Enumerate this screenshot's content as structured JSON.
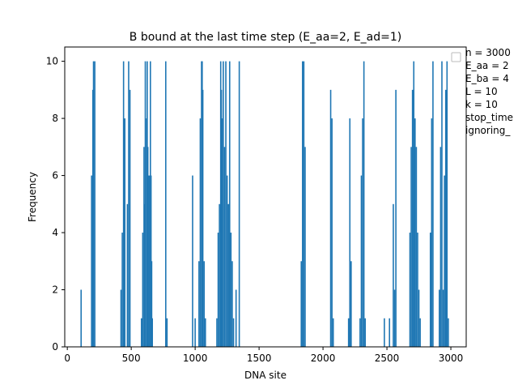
{
  "chart_data": {
    "type": "bar",
    "title": "B bound at the last time step (E_aa=2, E_ad=1)",
    "xlabel": "DNA site",
    "ylabel": "Frequency",
    "xlim": [
      -20,
      3120
    ],
    "ylim": [
      0,
      10.5
    ],
    "xticks": [
      0,
      500,
      1000,
      1500,
      2000,
      2500,
      3000
    ],
    "yticks": [
      0,
      2,
      4,
      6,
      8,
      10
    ],
    "bar_color": "#1f77b4",
    "legend": {
      "position": "upper-right",
      "entries": [
        "n = 3000",
        "E_aa = 2",
        "E_ba = 4",
        "L = 10",
        "k = 10",
        "stop_time",
        "ignoring_"
      ]
    },
    "series": [
      {
        "name": "B bound",
        "points": [
          [
            108,
            2
          ],
          [
            190,
            6
          ],
          [
            200,
            9
          ],
          [
            205,
            10
          ],
          [
            215,
            10
          ],
          [
            420,
            2
          ],
          [
            430,
            4
          ],
          [
            440,
            10
          ],
          [
            450,
            8
          ],
          [
            470,
            5
          ],
          [
            480,
            10
          ],
          [
            490,
            9
          ],
          [
            580,
            1
          ],
          [
            590,
            4
          ],
          [
            600,
            7
          ],
          [
            605,
            5
          ],
          [
            610,
            10
          ],
          [
            620,
            8
          ],
          [
            625,
            10
          ],
          [
            630,
            7
          ],
          [
            640,
            6
          ],
          [
            650,
            10
          ],
          [
            655,
            6
          ],
          [
            660,
            3
          ],
          [
            665,
            1
          ],
          [
            770,
            10
          ],
          [
            780,
            1
          ],
          [
            980,
            6
          ],
          [
            1000,
            1
          ],
          [
            1030,
            3
          ],
          [
            1040,
            8
          ],
          [
            1050,
            10
          ],
          [
            1055,
            10
          ],
          [
            1060,
            9
          ],
          [
            1070,
            3
          ],
          [
            1080,
            1
          ],
          [
            1170,
            1
          ],
          [
            1180,
            4
          ],
          [
            1190,
            5
          ],
          [
            1200,
            10
          ],
          [
            1205,
            9
          ],
          [
            1210,
            8
          ],
          [
            1220,
            10
          ],
          [
            1230,
            7
          ],
          [
            1240,
            10
          ],
          [
            1250,
            6
          ],
          [
            1260,
            5
          ],
          [
            1270,
            10
          ],
          [
            1280,
            4
          ],
          [
            1290,
            3
          ],
          [
            1300,
            1
          ],
          [
            1320,
            2
          ],
          [
            1345,
            10
          ],
          [
            1830,
            3
          ],
          [
            1840,
            10
          ],
          [
            1850,
            10
          ],
          [
            1860,
            7
          ],
          [
            2060,
            9
          ],
          [
            2070,
            8
          ],
          [
            2080,
            1
          ],
          [
            2200,
            1
          ],
          [
            2210,
            8
          ],
          [
            2220,
            3
          ],
          [
            2290,
            1
          ],
          [
            2300,
            6
          ],
          [
            2310,
            8
          ],
          [
            2320,
            10
          ],
          [
            2330,
            1
          ],
          [
            2480,
            1
          ],
          [
            2520,
            1
          ],
          [
            2550,
            5
          ],
          [
            2560,
            2
          ],
          [
            2570,
            9
          ],
          [
            2680,
            4
          ],
          [
            2690,
            7
          ],
          [
            2700,
            9
          ],
          [
            2710,
            10
          ],
          [
            2720,
            8
          ],
          [
            2730,
            7
          ],
          [
            2740,
            4
          ],
          [
            2750,
            2
          ],
          [
            2760,
            1
          ],
          [
            2840,
            4
          ],
          [
            2850,
            8
          ],
          [
            2860,
            10
          ],
          [
            2910,
            2
          ],
          [
            2920,
            7
          ],
          [
            2930,
            10
          ],
          [
            2940,
            2
          ],
          [
            2950,
            6
          ],
          [
            2960,
            9
          ],
          [
            2970,
            10
          ],
          [
            2980,
            1
          ]
        ]
      }
    ]
  }
}
